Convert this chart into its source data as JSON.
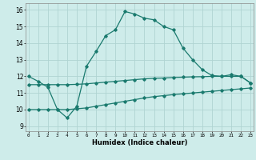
{
  "title": "",
  "xlabel": "Humidex (Indice chaleur)",
  "background_color": "#ceecea",
  "grid_color": "#b0d4d2",
  "line_color": "#1a7a6e",
  "x_ticks": [
    0,
    1,
    2,
    3,
    4,
    5,
    6,
    7,
    8,
    9,
    10,
    11,
    12,
    13,
    14,
    15,
    16,
    17,
    18,
    19,
    20,
    21,
    22,
    23
  ],
  "y_ticks": [
    9,
    10,
    11,
    12,
    13,
    14,
    15,
    16
  ],
  "ylim": [
    8.7,
    16.4
  ],
  "xlim": [
    -0.3,
    23.3
  ],
  "curve1_x": [
    0,
    1,
    2,
    3,
    4,
    5,
    6,
    7,
    8,
    9,
    10,
    11,
    12,
    13,
    14,
    15,
    16,
    17,
    18,
    19,
    20,
    21,
    22,
    23
  ],
  "curve1_y": [
    12.0,
    11.7,
    11.35,
    10.0,
    9.5,
    10.2,
    12.6,
    13.5,
    14.45,
    14.8,
    15.9,
    15.75,
    15.5,
    15.4,
    15.0,
    14.8,
    13.7,
    13.0,
    12.4,
    12.05,
    12.0,
    12.1,
    12.0,
    11.6
  ],
  "curve2_x": [
    0,
    1,
    2,
    3,
    4,
    5,
    6,
    7,
    8,
    9,
    10,
    11,
    12,
    13,
    14,
    15,
    16,
    17,
    18,
    19,
    20,
    21,
    22,
    23
  ],
  "curve2_y": [
    11.5,
    11.5,
    11.5,
    11.5,
    11.5,
    11.52,
    11.55,
    11.6,
    11.65,
    11.7,
    11.75,
    11.8,
    11.85,
    11.88,
    11.9,
    11.93,
    11.95,
    11.97,
    11.98,
    12.0,
    12.0,
    12.0,
    12.0,
    11.6
  ],
  "curve3_x": [
    0,
    1,
    2,
    3,
    4,
    5,
    6,
    7,
    8,
    9,
    10,
    11,
    12,
    13,
    14,
    15,
    16,
    17,
    18,
    19,
    20,
    21,
    22,
    23
  ],
  "curve3_y": [
    10.0,
    10.0,
    10.0,
    10.0,
    10.0,
    10.05,
    10.1,
    10.2,
    10.3,
    10.4,
    10.5,
    10.6,
    10.7,
    10.78,
    10.84,
    10.9,
    10.95,
    11.0,
    11.05,
    11.1,
    11.15,
    11.2,
    11.25,
    11.3
  ]
}
